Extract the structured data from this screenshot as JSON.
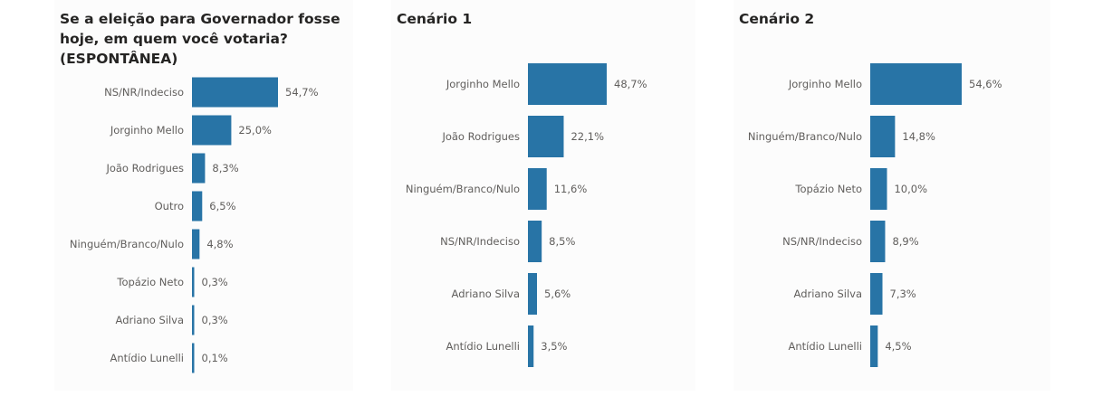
{
  "chart_data": [
    {
      "type": "bar",
      "title": "Se a eleição para Governador fosse hoje, em quem você votaria? (ESPONTÂNEA)",
      "orientation": "horizontal",
      "categories": [
        "NS/NR/Indeciso",
        "Jorginho Mello",
        "João Rodrigues",
        "Outro",
        "Ninguém/Branco/Nulo",
        "Topázio Neto",
        "Adriano Silva",
        "Antídio Lunelli"
      ],
      "values": [
        54.7,
        25.0,
        8.3,
        6.5,
        4.8,
        0.3,
        0.3,
        0.1
      ],
      "labels": [
        "54,7%",
        "25,0%",
        "8,3%",
        "6,5%",
        "4,8%",
        "0,3%",
        "0,3%",
        "0,1%"
      ],
      "color": "#2874a6"
    },
    {
      "type": "bar",
      "title": "Cenário 1",
      "orientation": "horizontal",
      "categories": [
        "Jorginho Mello",
        "João Rodrigues",
        "Ninguém/Branco/Nulo",
        "NS/NR/Indeciso",
        "Adriano Silva",
        "Antídio Lunelli"
      ],
      "values": [
        48.7,
        22.1,
        11.6,
        8.5,
        5.6,
        3.5
      ],
      "labels": [
        "48,7%",
        "22,1%",
        "11,6%",
        "8,5%",
        "5,6%",
        "3,5%"
      ],
      "color": "#2874a6"
    },
    {
      "type": "bar",
      "title": "Cenário 2",
      "orientation": "horizontal",
      "categories": [
        "Jorginho Mello",
        "Ninguém/Branco/Nulo",
        "Topázio Neto",
        "NS/NR/Indeciso",
        "Adriano Silva",
        "Antídio Lunelli"
      ],
      "values": [
        54.6,
        14.8,
        10.0,
        8.9,
        7.3,
        4.5
      ],
      "labels": [
        "54,6%",
        "14,8%",
        "10,0%",
        "8,9%",
        "7,3%",
        "4,5%"
      ],
      "color": "#2874a6"
    }
  ]
}
